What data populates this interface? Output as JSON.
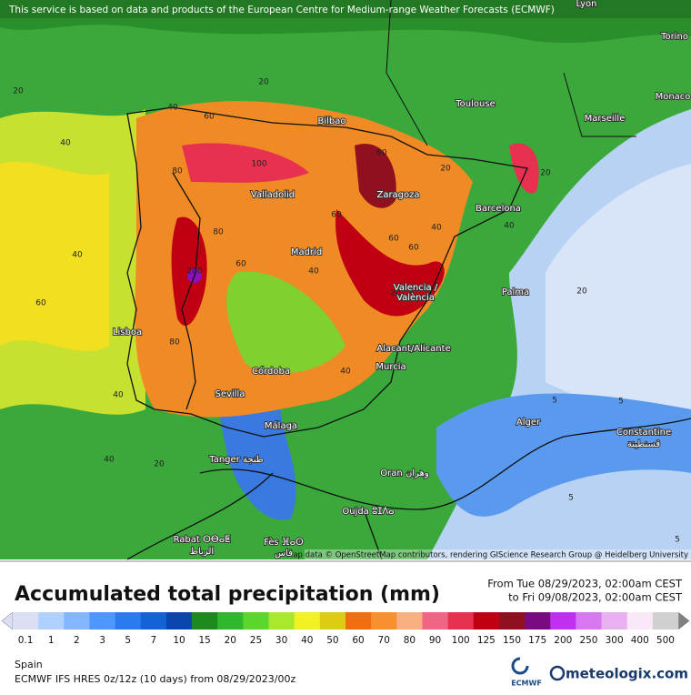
{
  "notice": "This service is based on data and products of the European Centre for Medium-range Weather Forecasts (ECMWF)",
  "attribution": "Map data © OpenStreetMap contributors, rendering GIScience Research Group @ Heidelberg University",
  "cities": [
    "Lyon",
    "Torino",
    "Monaco",
    "Marseille",
    "Toulouse",
    "Bilbao",
    "Zaragoza",
    "Barcelona",
    "Valladolid",
    "Madrid",
    "Valencia /",
    "València",
    "Palma",
    "Lisboa",
    "Alacant/Alicante",
    "Murcia",
    "Córdoba",
    "Sevilla",
    "Málaga",
    "Alger",
    "Constantine",
    "قسنطينة",
    "Tanger طنجة",
    "Oran وهران",
    "Oujda ⵓⵊⴷⴰ",
    "Rabat ⵔⴱⴰⵟ",
    "الرباط",
    "Fès ⴼⴰⵙ",
    "فاس"
  ],
  "contour_labels": [
    "20",
    "40",
    "60",
    "80",
    "40",
    "20",
    "40",
    "60",
    "100",
    "80",
    "60",
    "40",
    "20",
    "200",
    "80",
    "60",
    "40",
    "60",
    "80",
    "40",
    "20",
    "5",
    "5",
    "5",
    "5",
    "20",
    "40",
    "60",
    "40",
    "20",
    "20",
    "40"
  ],
  "title": "Accumulated total precipitation (mm)",
  "period": [
    "From Tue 08/29/2023, 02:00am CEST",
    "to Fri 09/08/2023, 02:00am CEST"
  ],
  "legend": {
    "values": [
      0.1,
      1,
      2,
      3,
      5,
      7,
      10,
      15,
      20,
      25,
      30,
      40,
      50,
      60,
      70,
      80,
      90,
      100,
      125,
      150,
      175,
      200,
      250,
      300,
      400,
      500
    ],
    "colors": [
      "#dcdff3",
      "#b0d0ff",
      "#84b6ff",
      "#5096ff",
      "#2b7af0",
      "#1562d6",
      "#0b45ae",
      "#1e8a1e",
      "#2fb82f",
      "#5cd62c",
      "#aae82c",
      "#f2f222",
      "#dccc12",
      "#f06e10",
      "#f89030",
      "#f8b080",
      "#f06484",
      "#e83050",
      "#c00012",
      "#901020",
      "#7a0a80",
      "#c030f0",
      "#d878f0",
      "#e8b0f0",
      "#f8e8f8",
      "#d0d0d0"
    ]
  },
  "region": "Spain",
  "model": "ECMWF IFS HRES 0z/12z (10 days) from  08/29/2023/00z",
  "logo_ecmwf": "ECMWF",
  "logo_site": "meteologix.com"
}
